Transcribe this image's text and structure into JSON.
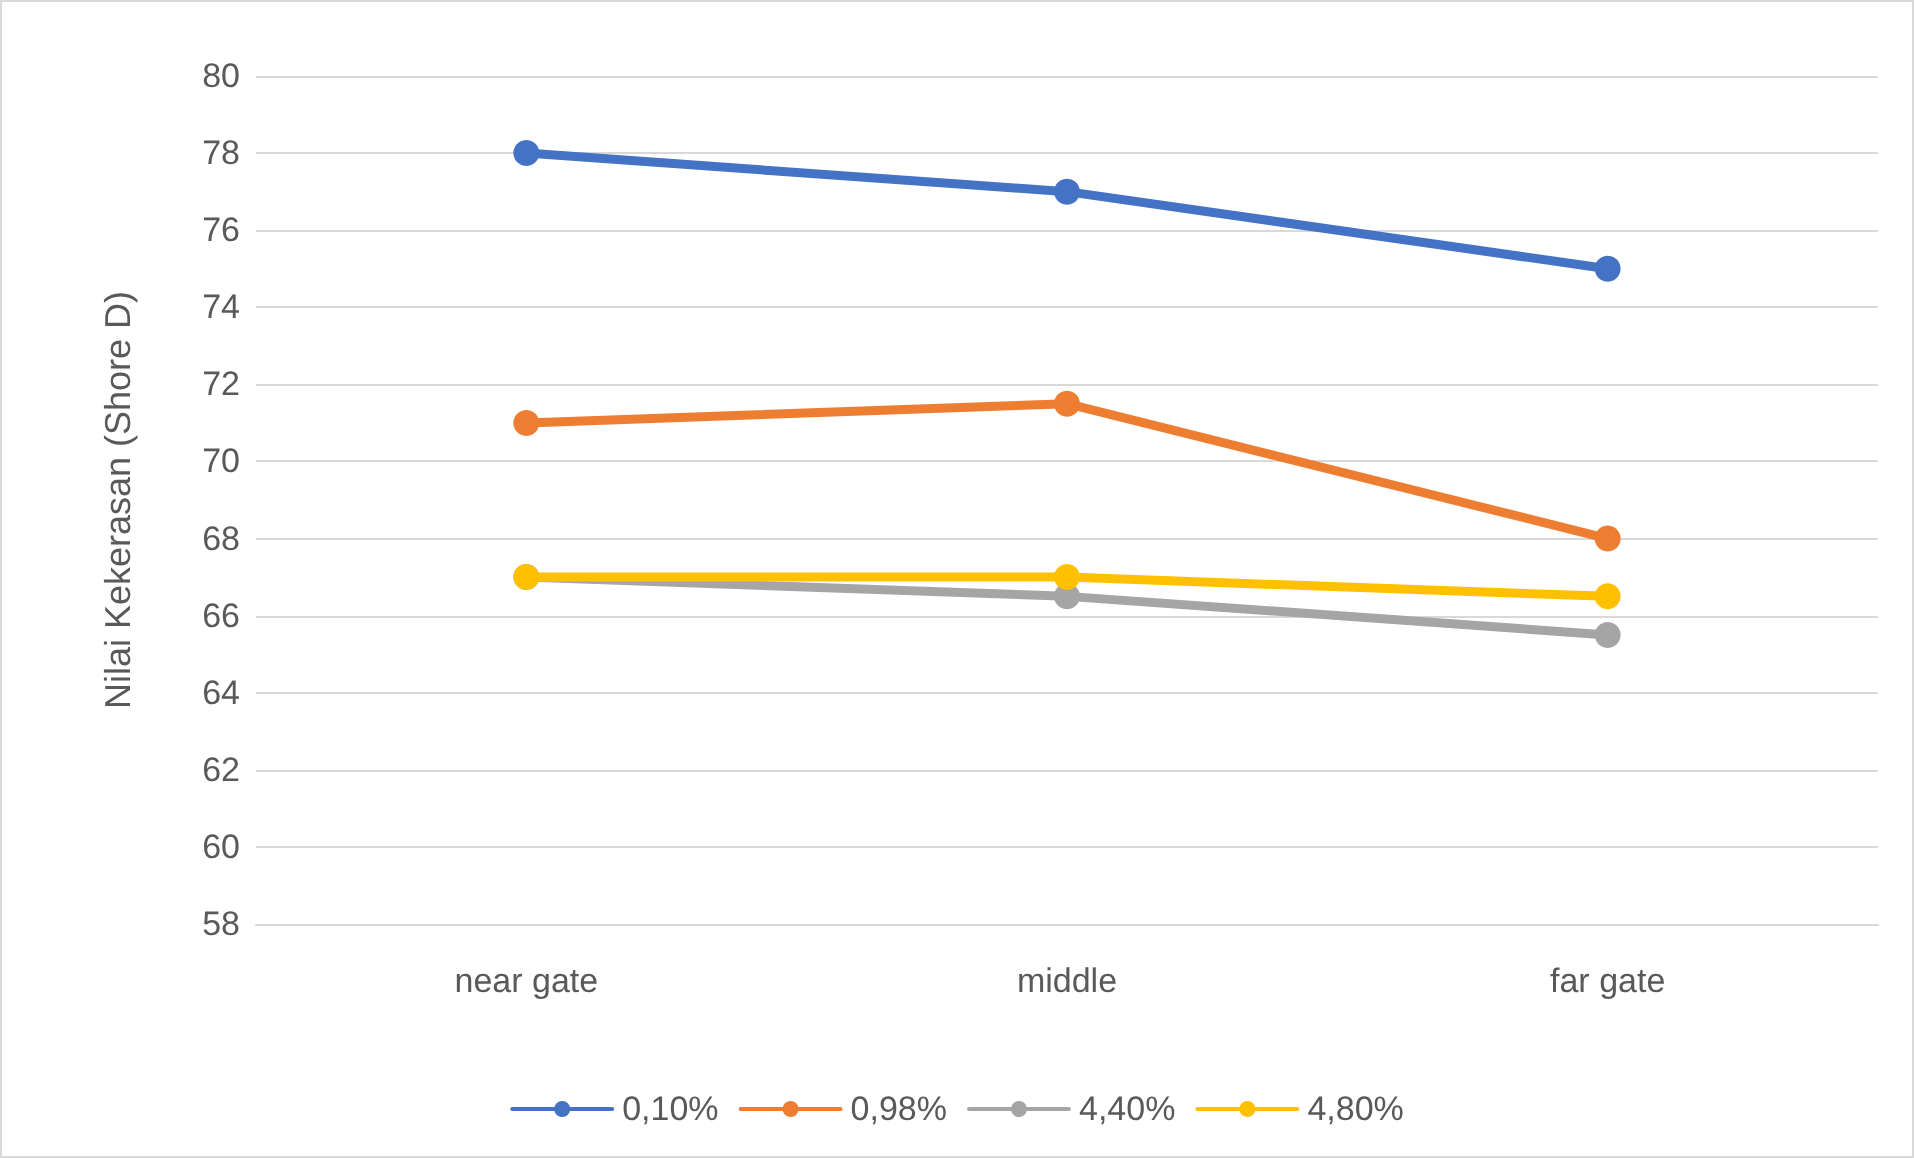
{
  "chart_data": {
    "type": "line",
    "ylabel": "Nilai Kekerasan (Shore D)",
    "categories": [
      "near gate",
      "middle",
      "far gate"
    ],
    "series": [
      {
        "name": "0,10%",
        "color": "#4472c4",
        "values": [
          78,
          77,
          75
        ]
      },
      {
        "name": "0,98%",
        "color": "#ed7d31",
        "values": [
          71,
          71.5,
          68
        ]
      },
      {
        "name": "4,40%",
        "color": "#a5a5a5",
        "values": [
          67,
          66.5,
          65.5
        ]
      },
      {
        "name": "4,80%",
        "color": "#ffc000",
        "values": [
          67,
          67,
          66.5
        ]
      }
    ],
    "ylim": [
      58,
      80
    ],
    "yticks": [
      58,
      60,
      62,
      64,
      66,
      68,
      70,
      72,
      74,
      76,
      78,
      80
    ],
    "grid": "y",
    "legend": "bottom",
    "marker": "circle",
    "line_style": "solid"
  }
}
